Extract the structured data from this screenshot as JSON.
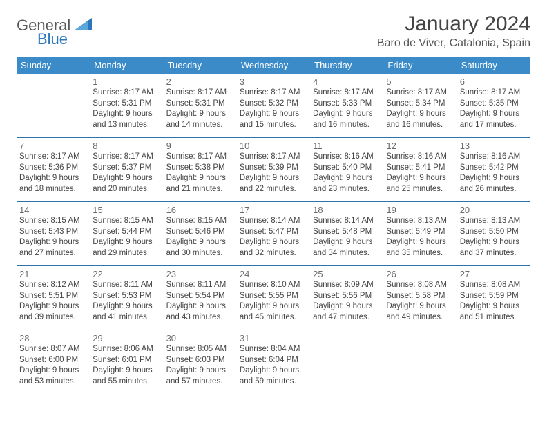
{
  "brand": {
    "part1": "General",
    "part2": "Blue"
  },
  "title": "January 2024",
  "location": "Baro de Viver, Catalonia, Spain",
  "colors": {
    "header_bg": "#3b8bc9",
    "header_text": "#ffffff",
    "row_divider": "#2e72ab",
    "text": "#454545",
    "daynum": "#6a6a6a",
    "brand_blue": "#2b77bd",
    "page_bg": "#ffffff"
  },
  "fonts": {
    "title_size_pt": 22,
    "location_size_pt": 12,
    "dayheader_size_pt": 10,
    "cell_size_pt": 8.5
  },
  "day_headers": [
    "Sunday",
    "Monday",
    "Tuesday",
    "Wednesday",
    "Thursday",
    "Friday",
    "Saturday"
  ],
  "weeks": [
    [
      null,
      {
        "n": "1",
        "sr": "Sunrise: 8:17 AM",
        "ss": "Sunset: 5:31 PM",
        "d1": "Daylight: 9 hours",
        "d2": "and 13 minutes."
      },
      {
        "n": "2",
        "sr": "Sunrise: 8:17 AM",
        "ss": "Sunset: 5:31 PM",
        "d1": "Daylight: 9 hours",
        "d2": "and 14 minutes."
      },
      {
        "n": "3",
        "sr": "Sunrise: 8:17 AM",
        "ss": "Sunset: 5:32 PM",
        "d1": "Daylight: 9 hours",
        "d2": "and 15 minutes."
      },
      {
        "n": "4",
        "sr": "Sunrise: 8:17 AM",
        "ss": "Sunset: 5:33 PM",
        "d1": "Daylight: 9 hours",
        "d2": "and 16 minutes."
      },
      {
        "n": "5",
        "sr": "Sunrise: 8:17 AM",
        "ss": "Sunset: 5:34 PM",
        "d1": "Daylight: 9 hours",
        "d2": "and 16 minutes."
      },
      {
        "n": "6",
        "sr": "Sunrise: 8:17 AM",
        "ss": "Sunset: 5:35 PM",
        "d1": "Daylight: 9 hours",
        "d2": "and 17 minutes."
      }
    ],
    [
      {
        "n": "7",
        "sr": "Sunrise: 8:17 AM",
        "ss": "Sunset: 5:36 PM",
        "d1": "Daylight: 9 hours",
        "d2": "and 18 minutes."
      },
      {
        "n": "8",
        "sr": "Sunrise: 8:17 AM",
        "ss": "Sunset: 5:37 PM",
        "d1": "Daylight: 9 hours",
        "d2": "and 20 minutes."
      },
      {
        "n": "9",
        "sr": "Sunrise: 8:17 AM",
        "ss": "Sunset: 5:38 PM",
        "d1": "Daylight: 9 hours",
        "d2": "and 21 minutes."
      },
      {
        "n": "10",
        "sr": "Sunrise: 8:17 AM",
        "ss": "Sunset: 5:39 PM",
        "d1": "Daylight: 9 hours",
        "d2": "and 22 minutes."
      },
      {
        "n": "11",
        "sr": "Sunrise: 8:16 AM",
        "ss": "Sunset: 5:40 PM",
        "d1": "Daylight: 9 hours",
        "d2": "and 23 minutes."
      },
      {
        "n": "12",
        "sr": "Sunrise: 8:16 AM",
        "ss": "Sunset: 5:41 PM",
        "d1": "Daylight: 9 hours",
        "d2": "and 25 minutes."
      },
      {
        "n": "13",
        "sr": "Sunrise: 8:16 AM",
        "ss": "Sunset: 5:42 PM",
        "d1": "Daylight: 9 hours",
        "d2": "and 26 minutes."
      }
    ],
    [
      {
        "n": "14",
        "sr": "Sunrise: 8:15 AM",
        "ss": "Sunset: 5:43 PM",
        "d1": "Daylight: 9 hours",
        "d2": "and 27 minutes."
      },
      {
        "n": "15",
        "sr": "Sunrise: 8:15 AM",
        "ss": "Sunset: 5:44 PM",
        "d1": "Daylight: 9 hours",
        "d2": "and 29 minutes."
      },
      {
        "n": "16",
        "sr": "Sunrise: 8:15 AM",
        "ss": "Sunset: 5:46 PM",
        "d1": "Daylight: 9 hours",
        "d2": "and 30 minutes."
      },
      {
        "n": "17",
        "sr": "Sunrise: 8:14 AM",
        "ss": "Sunset: 5:47 PM",
        "d1": "Daylight: 9 hours",
        "d2": "and 32 minutes."
      },
      {
        "n": "18",
        "sr": "Sunrise: 8:14 AM",
        "ss": "Sunset: 5:48 PM",
        "d1": "Daylight: 9 hours",
        "d2": "and 34 minutes."
      },
      {
        "n": "19",
        "sr": "Sunrise: 8:13 AM",
        "ss": "Sunset: 5:49 PM",
        "d1": "Daylight: 9 hours",
        "d2": "and 35 minutes."
      },
      {
        "n": "20",
        "sr": "Sunrise: 8:13 AM",
        "ss": "Sunset: 5:50 PM",
        "d1": "Daylight: 9 hours",
        "d2": "and 37 minutes."
      }
    ],
    [
      {
        "n": "21",
        "sr": "Sunrise: 8:12 AM",
        "ss": "Sunset: 5:51 PM",
        "d1": "Daylight: 9 hours",
        "d2": "and 39 minutes."
      },
      {
        "n": "22",
        "sr": "Sunrise: 8:11 AM",
        "ss": "Sunset: 5:53 PM",
        "d1": "Daylight: 9 hours",
        "d2": "and 41 minutes."
      },
      {
        "n": "23",
        "sr": "Sunrise: 8:11 AM",
        "ss": "Sunset: 5:54 PM",
        "d1": "Daylight: 9 hours",
        "d2": "and 43 minutes."
      },
      {
        "n": "24",
        "sr": "Sunrise: 8:10 AM",
        "ss": "Sunset: 5:55 PM",
        "d1": "Daylight: 9 hours",
        "d2": "and 45 minutes."
      },
      {
        "n": "25",
        "sr": "Sunrise: 8:09 AM",
        "ss": "Sunset: 5:56 PM",
        "d1": "Daylight: 9 hours",
        "d2": "and 47 minutes."
      },
      {
        "n": "26",
        "sr": "Sunrise: 8:08 AM",
        "ss": "Sunset: 5:58 PM",
        "d1": "Daylight: 9 hours",
        "d2": "and 49 minutes."
      },
      {
        "n": "27",
        "sr": "Sunrise: 8:08 AM",
        "ss": "Sunset: 5:59 PM",
        "d1": "Daylight: 9 hours",
        "d2": "and 51 minutes."
      }
    ],
    [
      {
        "n": "28",
        "sr": "Sunrise: 8:07 AM",
        "ss": "Sunset: 6:00 PM",
        "d1": "Daylight: 9 hours",
        "d2": "and 53 minutes."
      },
      {
        "n": "29",
        "sr": "Sunrise: 8:06 AM",
        "ss": "Sunset: 6:01 PM",
        "d1": "Daylight: 9 hours",
        "d2": "and 55 minutes."
      },
      {
        "n": "30",
        "sr": "Sunrise: 8:05 AM",
        "ss": "Sunset: 6:03 PM",
        "d1": "Daylight: 9 hours",
        "d2": "and 57 minutes."
      },
      {
        "n": "31",
        "sr": "Sunrise: 8:04 AM",
        "ss": "Sunset: 6:04 PM",
        "d1": "Daylight: 9 hours",
        "d2": "and 59 minutes."
      },
      null,
      null,
      null
    ]
  ]
}
